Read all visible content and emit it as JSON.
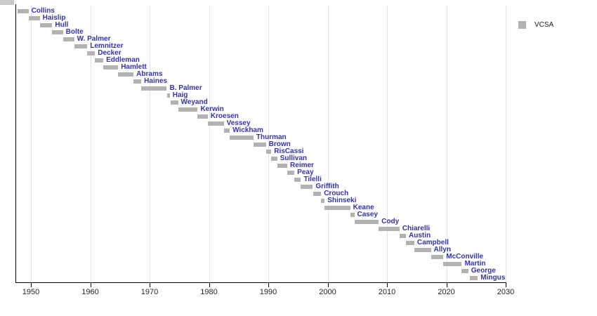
{
  "chart_data": {
    "type": "bar",
    "subtype": "gantt-timeline",
    "title": "",
    "xlabel": "",
    "ylabel": "",
    "grid": "vertical-light",
    "legend": {
      "label": "VCSA",
      "position": "top-right",
      "swatch_color": "#b2b2b2"
    },
    "x_axis": {
      "ticks": [
        1950,
        1960,
        1970,
        1980,
        1990,
        2000,
        2010,
        2020,
        2030
      ],
      "xlim": [
        1947.4,
        2030.8
      ]
    },
    "series": [
      {
        "name": "Collins",
        "start": 1947.7,
        "end": 1949.6
      },
      {
        "name": "Haislip",
        "start": 1949.6,
        "end": 1951.5
      },
      {
        "name": "Hull",
        "start": 1951.5,
        "end": 1953.6
      },
      {
        "name": "Bolte",
        "start": 1953.6,
        "end": 1955.4
      },
      {
        "name": "W. Palmer",
        "start": 1955.4,
        "end": 1957.3
      },
      {
        "name": "Lemnitzer",
        "start": 1957.3,
        "end": 1959.5
      },
      {
        "name": "Decker",
        "start": 1959.5,
        "end": 1960.8
      },
      {
        "name": "Eddleman",
        "start": 1960.8,
        "end": 1962.2
      },
      {
        "name": "Hamlett",
        "start": 1962.2,
        "end": 1964.7
      },
      {
        "name": "Abrams",
        "start": 1964.7,
        "end": 1967.3
      },
      {
        "name": "Haines",
        "start": 1967.3,
        "end": 1968.6
      },
      {
        "name": "B. Palmer",
        "start": 1968.6,
        "end": 1972.9
      },
      {
        "name": "Haig",
        "start": 1972.9,
        "end": 1973.4
      },
      {
        "name": "Weyand",
        "start": 1973.6,
        "end": 1974.8
      },
      {
        "name": "Kerwin",
        "start": 1974.8,
        "end": 1978.1
      },
      {
        "name": "Kroesen",
        "start": 1978.1,
        "end": 1979.8
      },
      {
        "name": "Vessey",
        "start": 1979.8,
        "end": 1982.5
      },
      {
        "name": "Wickham",
        "start": 1982.5,
        "end": 1983.5
      },
      {
        "name": "Thurman",
        "start": 1983.5,
        "end": 1987.5
      },
      {
        "name": "Brown",
        "start": 1987.5,
        "end": 1989.6
      },
      {
        "name": "RisCassi",
        "start": 1989.6,
        "end": 1990.5
      },
      {
        "name": "Sullivan",
        "start": 1990.5,
        "end": 1991.5
      },
      {
        "name": "Reimer",
        "start": 1991.5,
        "end": 1993.2
      },
      {
        "name": "Peay",
        "start": 1993.2,
        "end": 1994.4
      },
      {
        "name": "Tilelli",
        "start": 1994.4,
        "end": 1995.5
      },
      {
        "name": "Griffith",
        "start": 1995.5,
        "end": 1997.5
      },
      {
        "name": "Crouch",
        "start": 1997.6,
        "end": 1998.9
      },
      {
        "name": "Shinseki",
        "start": 1998.9,
        "end": 1999.5
      },
      {
        "name": "Keane",
        "start": 1999.5,
        "end": 2003.8
      },
      {
        "name": "Casey",
        "start": 2003.8,
        "end": 2004.5
      },
      {
        "name": "Cody",
        "start": 2004.5,
        "end": 2008.6
      },
      {
        "name": "Chiarelli",
        "start": 2008.6,
        "end": 2012.1
      },
      {
        "name": "Austin",
        "start": 2012.1,
        "end": 2013.2
      },
      {
        "name": "Campbell",
        "start": 2013.2,
        "end": 2014.6
      },
      {
        "name": "Allyn",
        "start": 2014.6,
        "end": 2017.4
      },
      {
        "name": "McConville",
        "start": 2017.4,
        "end": 2019.5
      },
      {
        "name": "Martin",
        "start": 2019.5,
        "end": 2022.6
      },
      {
        "name": "George",
        "start": 2022.6,
        "end": 2023.7
      },
      {
        "name": "Mingus",
        "start": 2024.0,
        "end": 2025.3
      }
    ]
  },
  "colors": {
    "background": "#ffffff",
    "bar": "#b2b2b2",
    "bar_label": "#3131b5",
    "axis": "#000000",
    "tick_label": "#262626",
    "gridline": "#e2e2e2",
    "legend_text": "#1a1a1a",
    "corner_fragment": "#c9c9c9"
  }
}
